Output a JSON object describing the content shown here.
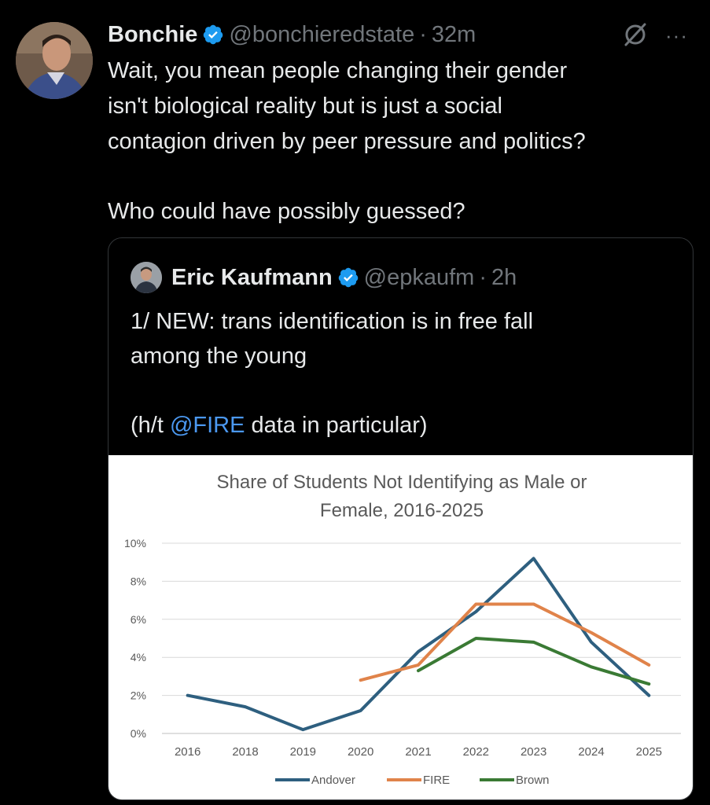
{
  "tweet": {
    "author_name": "Bonchie",
    "handle": "@bonchieredstate",
    "separator": "·",
    "time": "32m",
    "text_lines": [
      "Wait, you mean people changing their gender",
      "isn't biological reality but is just a social",
      "contagion driven by peer pressure and politics?"
    ],
    "text_line2": "Who could have possibly guessed?",
    "more_label": "···"
  },
  "quote": {
    "author_name": "Eric Kaufmann",
    "handle": "@epkaufm",
    "separator": "·",
    "time": "2h",
    "text_lines": [
      "1/ NEW: trans identification is in free fall",
      "among the young"
    ],
    "text_hat_prefix": "(h/t ",
    "text_hat_mention": "@FIRE",
    "text_hat_suffix": " data in particular)"
  },
  "colors": {
    "background": "#000000",
    "verified": "#1d9bf0",
    "mention": "#4b98f0",
    "andover": "#2e5f7f",
    "fire": "#e0834a",
    "brown": "#3a7a34"
  },
  "chart_data": {
    "type": "line",
    "title": "Share of Students Not Identifying as Male or Female, 2016-2025",
    "title_lines": [
      "Share of Students Not Identifying as Male or",
      "Female, 2016-2025"
    ],
    "categories": [
      "2016",
      "2018",
      "2019",
      "2020",
      "2021",
      "2022",
      "2023",
      "2024",
      "2025"
    ],
    "yticks": [
      "0%",
      "2%",
      "4%",
      "6%",
      "8%",
      "10%"
    ],
    "ylim": [
      0,
      10
    ],
    "grid": true,
    "legend_position": "bottom",
    "series": [
      {
        "name": "Andover",
        "color": "#2e5f7f",
        "values": [
          2.0,
          1.4,
          0.2,
          1.2,
          4.3,
          6.4,
          9.2,
          4.8,
          2.0
        ]
      },
      {
        "name": "FIRE",
        "color": "#e0834a",
        "values": [
          null,
          null,
          null,
          2.8,
          3.6,
          6.8,
          6.8,
          5.3,
          3.6
        ]
      },
      {
        "name": "Brown",
        "color": "#3a7a34",
        "values": [
          null,
          null,
          null,
          null,
          3.3,
          5.0,
          4.8,
          3.5,
          2.6
        ]
      }
    ]
  }
}
